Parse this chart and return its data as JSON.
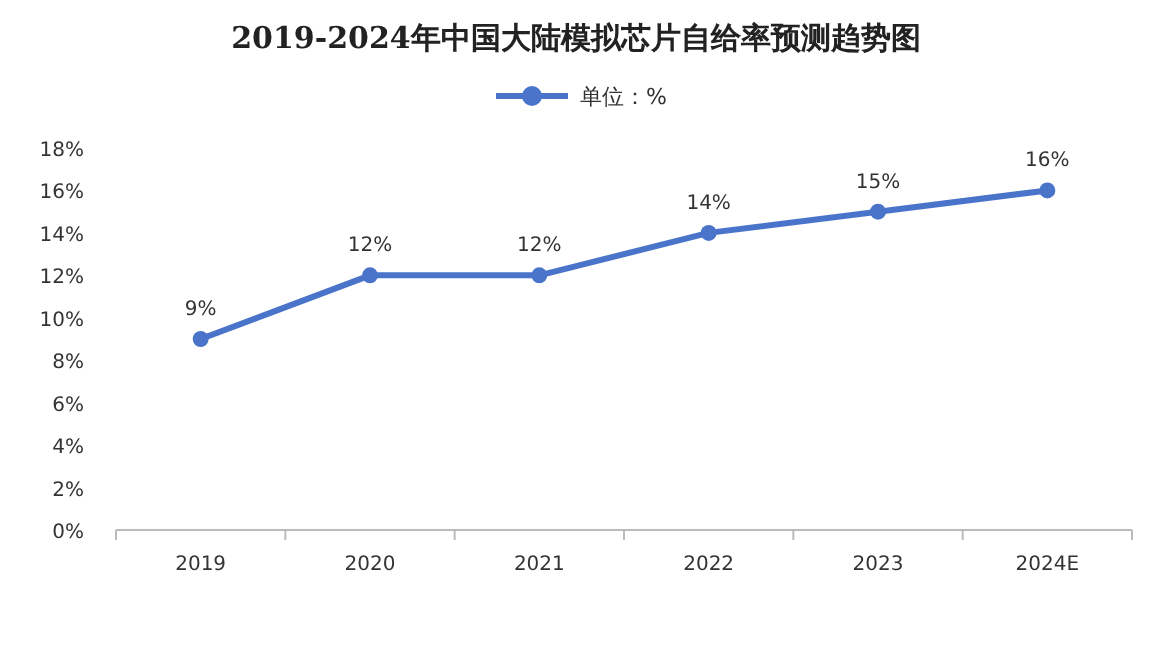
{
  "chart_data": {
    "type": "line",
    "title": "2019-2024年中国大陆模拟芯片自给率预测趋势图",
    "categories": [
      "2019",
      "2020",
      "2021",
      "2022",
      "2023",
      "2024E"
    ],
    "series": [
      {
        "name": "单位：%",
        "color": "#4a74c9",
        "values": [
          9,
          12,
          12,
          14,
          15,
          16
        ],
        "value_labels": [
          "9%",
          "12%",
          "12%",
          "14%",
          "15%",
          "16%"
        ]
      }
    ],
    "ylim": [
      0,
      18
    ],
    "yticks": [
      {
        "value": 0,
        "label": "0%"
      },
      {
        "value": 2,
        "label": "2%"
      },
      {
        "value": 4,
        "label": "4%"
      },
      {
        "value": 6,
        "label": "6%"
      },
      {
        "value": 8,
        "label": "8%"
      },
      {
        "value": 10,
        "label": "10%"
      },
      {
        "value": 12,
        "label": "12%"
      },
      {
        "value": 14,
        "label": "14%"
      },
      {
        "value": 16,
        "label": "16%"
      },
      {
        "value": 18,
        "label": "18%"
      }
    ],
    "grid": false,
    "legend": "top",
    "marker": "circle",
    "line_style": "solid"
  }
}
